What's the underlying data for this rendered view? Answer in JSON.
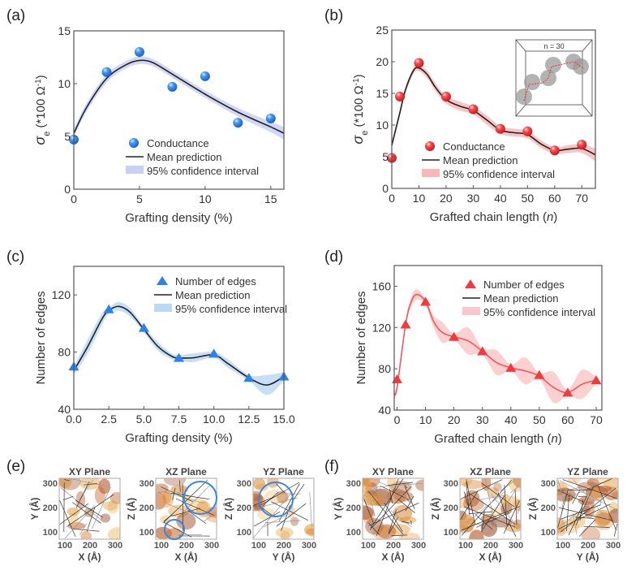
{
  "panel_labels": [
    "(a)",
    "(b)",
    "(c)",
    "(d)",
    "(e)",
    "(f)"
  ],
  "colors": {
    "blue": "#2f80e8",
    "blue_band": "#c9d0f5",
    "red": "#f2393c",
    "red_band": "#f8b7b8",
    "mean_black": "#222222",
    "mean_red": "#ef5a5c",
    "band_c": "#bcd8f5",
    "band_d": "#f9c8c8"
  },
  "chart_data": [
    {
      "id": "a",
      "type": "scatter",
      "xlabel": [
        {
          "t": "Grafting density (%)"
        }
      ],
      "ylabel": {
        "main": "σ",
        "sub": "e",
        "rest": " (*100 Ω",
        "sup": "-1",
        "end": ")"
      },
      "xlim": [
        0,
        16
      ],
      "ylim": [
        0,
        15
      ],
      "xticks": [
        "0",
        "5",
        "10",
        "15"
      ],
      "xtick_values": [
        0,
        5,
        10,
        15
      ],
      "yticks": [
        "0",
        "5",
        "10",
        "15"
      ],
      "ytick_values": [
        0,
        5,
        10,
        15
      ],
      "legend": [
        "Conductance",
        "Mean prediction",
        "95% confidence interval"
      ],
      "legend_placement": "bottom-right",
      "marker": "sphere",
      "points": {
        "x": [
          0,
          2.5,
          5,
          7.5,
          10,
          12.5,
          15
        ],
        "y": [
          4.7,
          11.1,
          13.0,
          9.7,
          10.7,
          6.3,
          6.7
        ]
      },
      "mean": {
        "x": [
          0,
          1,
          2.5,
          4,
          5,
          6,
          7.5,
          10,
          12.5,
          15,
          16
        ],
        "y": [
          5.3,
          7.8,
          10.5,
          11.8,
          12.2,
          12.0,
          10.9,
          9.0,
          7.3,
          5.9,
          5.3
        ]
      },
      "ci_halfwidth": [
        0.4,
        0.4,
        0.4,
        0.35,
        0.35,
        0.35,
        0.35,
        0.35,
        0.4,
        0.5,
        0.6
      ]
    },
    {
      "id": "b",
      "type": "scatter",
      "xlabel": [
        {
          "t": "Grafted chain length ("
        },
        {
          "t": "n",
          "i": true
        },
        {
          "t": ")"
        }
      ],
      "ylabel": {
        "main": "σ",
        "sub": "e",
        "rest": " (*100 Ω",
        "sup": "-1",
        "end": ")"
      },
      "xlim": [
        0,
        75
      ],
      "ylim": [
        0,
        25
      ],
      "xticks": [
        "0",
        "10",
        "20",
        "30",
        "40",
        "50",
        "60",
        "70"
      ],
      "xtick_values": [
        0,
        10,
        20,
        30,
        40,
        50,
        60,
        70
      ],
      "yticks": [
        "0",
        "5",
        "10",
        "15",
        "20",
        "25"
      ],
      "ytick_values": [
        0,
        5,
        10,
        15,
        20,
        25
      ],
      "legend": [
        "Conductance",
        "Mean prediction",
        "95% confidence interval"
      ],
      "legend_placement": "bottom-left",
      "marker": "sphere",
      "inset_label": "n = 30",
      "points": {
        "x": [
          0,
          3,
          10,
          20,
          30,
          40,
          50,
          60,
          70
        ],
        "y": [
          4.8,
          14.5,
          19.8,
          14.5,
          12.5,
          9.4,
          9.0,
          6.0,
          6.9
        ]
      },
      "mean": {
        "x": [
          0,
          3,
          5,
          8,
          10,
          13,
          16,
          20,
          25,
          30,
          35,
          40,
          45,
          50,
          55,
          60,
          65,
          70,
          75
        ],
        "y": [
          6.8,
          12.0,
          15.5,
          18.6,
          19.0,
          18.0,
          16.0,
          14.0,
          13.0,
          12.3,
          10.8,
          9.2,
          8.8,
          8.5,
          7.0,
          6.0,
          6.2,
          6.3,
          5.3
        ]
      },
      "ci_halfwidth": [
        0.5,
        0.5,
        0.5,
        0.5,
        0.5,
        0.6,
        0.6,
        0.6,
        0.7,
        0.6,
        0.7,
        0.6,
        0.6,
        0.6,
        0.6,
        0.5,
        0.6,
        0.7,
        1.0
      ]
    },
    {
      "id": "c",
      "type": "scatter",
      "xlabel": [
        {
          "t": "Grafting density (%)"
        }
      ],
      "ylabel": {
        "main": "Number of edges"
      },
      "xlim": [
        0,
        15
      ],
      "ylim": [
        40,
        140
      ],
      "xticks": [
        "0.0",
        "2.5",
        "5.0",
        "7.5",
        "10.0",
        "12.5",
        "15.0"
      ],
      "xtick_values": [
        0,
        2.5,
        5,
        7.5,
        10,
        12.5,
        15
      ],
      "yticks": [
        "40",
        "80",
        "120"
      ],
      "ytick_values": [
        40,
        80,
        120
      ],
      "legend": [
        "Number of edges",
        "Mean prediction",
        "95% confidence interval"
      ],
      "legend_placement": "top-right",
      "marker": "triangle",
      "points": {
        "x": [
          0,
          2.5,
          5,
          7.5,
          10,
          12.5,
          15
        ],
        "y": [
          70,
          110,
          97,
          76,
          79,
          62,
          63
        ]
      },
      "mean": {
        "x": [
          0,
          1,
          2,
          2.5,
          3.2,
          4,
          5,
          6,
          7,
          7.5,
          8.5,
          10,
          11,
          12.5,
          13.8,
          15
        ],
        "y": [
          67,
          84,
          103,
          109,
          112,
          108,
          96,
          84,
          77,
          76,
          76,
          78,
          72,
          62,
          57,
          63
        ]
      },
      "ci_halfwidth": [
        3,
        5,
        4,
        2,
        3,
        3,
        2,
        3,
        2,
        2,
        3,
        2,
        3,
        2,
        7,
        3
      ]
    },
    {
      "id": "d",
      "type": "scatter",
      "xlabel": [
        {
          "t": "Grafted chain length ("
        },
        {
          "t": "n",
          "i": true
        },
        {
          "t": ")"
        }
      ],
      "ylabel": {
        "main": "Number of edges"
      },
      "xlim": [
        -1,
        72
      ],
      "ylim": [
        40,
        180
      ],
      "xticks": [
        "0",
        "10",
        "20",
        "30",
        "40",
        "50",
        "60",
        "70"
      ],
      "xtick_values": [
        0,
        10,
        20,
        30,
        40,
        50,
        60,
        70
      ],
      "yticks": [
        "40",
        "80",
        "120",
        "160"
      ],
      "ytick_values": [
        40,
        80,
        120,
        160
      ],
      "legend": [
        "Number of edges",
        "Mean prediction",
        "95% confidence interval"
      ],
      "legend_placement": "top-right",
      "marker": "triangle",
      "points": {
        "x": [
          0,
          3,
          10,
          20,
          30,
          40,
          50,
          60,
          70
        ],
        "y": [
          70,
          123,
          145,
          111,
          97,
          81,
          74,
          57,
          69
        ]
      },
      "mean": {
        "x": [
          -1,
          0,
          3,
          5,
          7,
          10,
          13,
          16,
          20,
          25,
          30,
          35,
          40,
          45,
          50,
          55,
          60,
          65,
          70
        ],
        "y": [
          55,
          62,
          123,
          145,
          152,
          145,
          125,
          115,
          111,
          107,
          97,
          86,
          81,
          78,
          73,
          62,
          57,
          65,
          69
        ]
      },
      "ci_halfwidth": [
        4,
        3,
        3,
        5,
        5,
        3,
        6,
        10,
        3,
        13,
        3,
        12,
        3,
        13,
        3,
        15,
        3,
        14,
        3
      ]
    }
  ],
  "structure_panels": [
    {
      "id": "e",
      "plots": [
        {
          "title": "XY Plane",
          "xlabel": "X (Å)",
          "ylabel": "Y (Å)",
          "circles": 0
        },
        {
          "title": "XZ Plane",
          "xlabel": "X (Å)",
          "ylabel": "Z (Å)",
          "circles": 2
        },
        {
          "title": "YZ Plane",
          "xlabel": "Y (Å)",
          "ylabel": "Z (Å)",
          "circles": 1
        }
      ]
    },
    {
      "id": "f",
      "plots": [
        {
          "title": "XY Plane",
          "xlabel": "X (Å)",
          "ylabel": "Y (Å)",
          "circles": 0
        },
        {
          "title": "XZ Plane",
          "xlabel": "X (Å)",
          "ylabel": "Z (Å)",
          "circles": 0
        },
        {
          "title": "YZ Plane",
          "xlabel": "Y (Å)",
          "ylabel": "Z (Å)",
          "circles": 0
        }
      ]
    }
  ],
  "structure_ticks": [
    "100",
    "200",
    "300"
  ],
  "circle_color": "#3a86e0"
}
